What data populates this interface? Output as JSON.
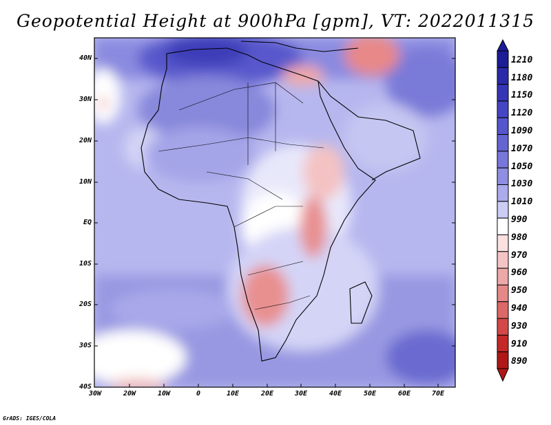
{
  "title": "Geopotential Height at 900hPa [gpm], VT: 2022011315",
  "credit": "GrADS: IGES/COLA",
  "lat_labels": [
    "40N",
    "30N",
    "20N",
    "10N",
    "EQ",
    "10S",
    "20S",
    "30S",
    "40S"
  ],
  "lon_labels": [
    "30W",
    "20W",
    "10W",
    "0",
    "10E",
    "20E",
    "30E",
    "40E",
    "50E",
    "60E",
    "70E"
  ],
  "colorbar": {
    "labels": [
      "1210",
      "1180",
      "1150",
      "1120",
      "1090",
      "1070",
      "1050",
      "1030",
      "1010",
      "990",
      "980",
      "970",
      "960",
      "950",
      "940",
      "930",
      "910",
      "890"
    ],
    "colors": [
      "#1c1c96",
      "#2a2aa8",
      "#3535b6",
      "#4545c4",
      "#5555cc",
      "#6565d2",
      "#7878da",
      "#8e8ee2",
      "#aaaaec",
      "#ccccf5",
      "#ffffff",
      "#fbe0e0",
      "#f5c4c4",
      "#eda8a8",
      "#e48888",
      "#dc6868",
      "#d44848",
      "#c42828",
      "#b01818"
    ]
  },
  "colors": {
    "ocean_base": "#b4b4ee",
    "high_blue": "#5c5cd0",
    "low_red": "#e07070",
    "coast": "#000000"
  }
}
